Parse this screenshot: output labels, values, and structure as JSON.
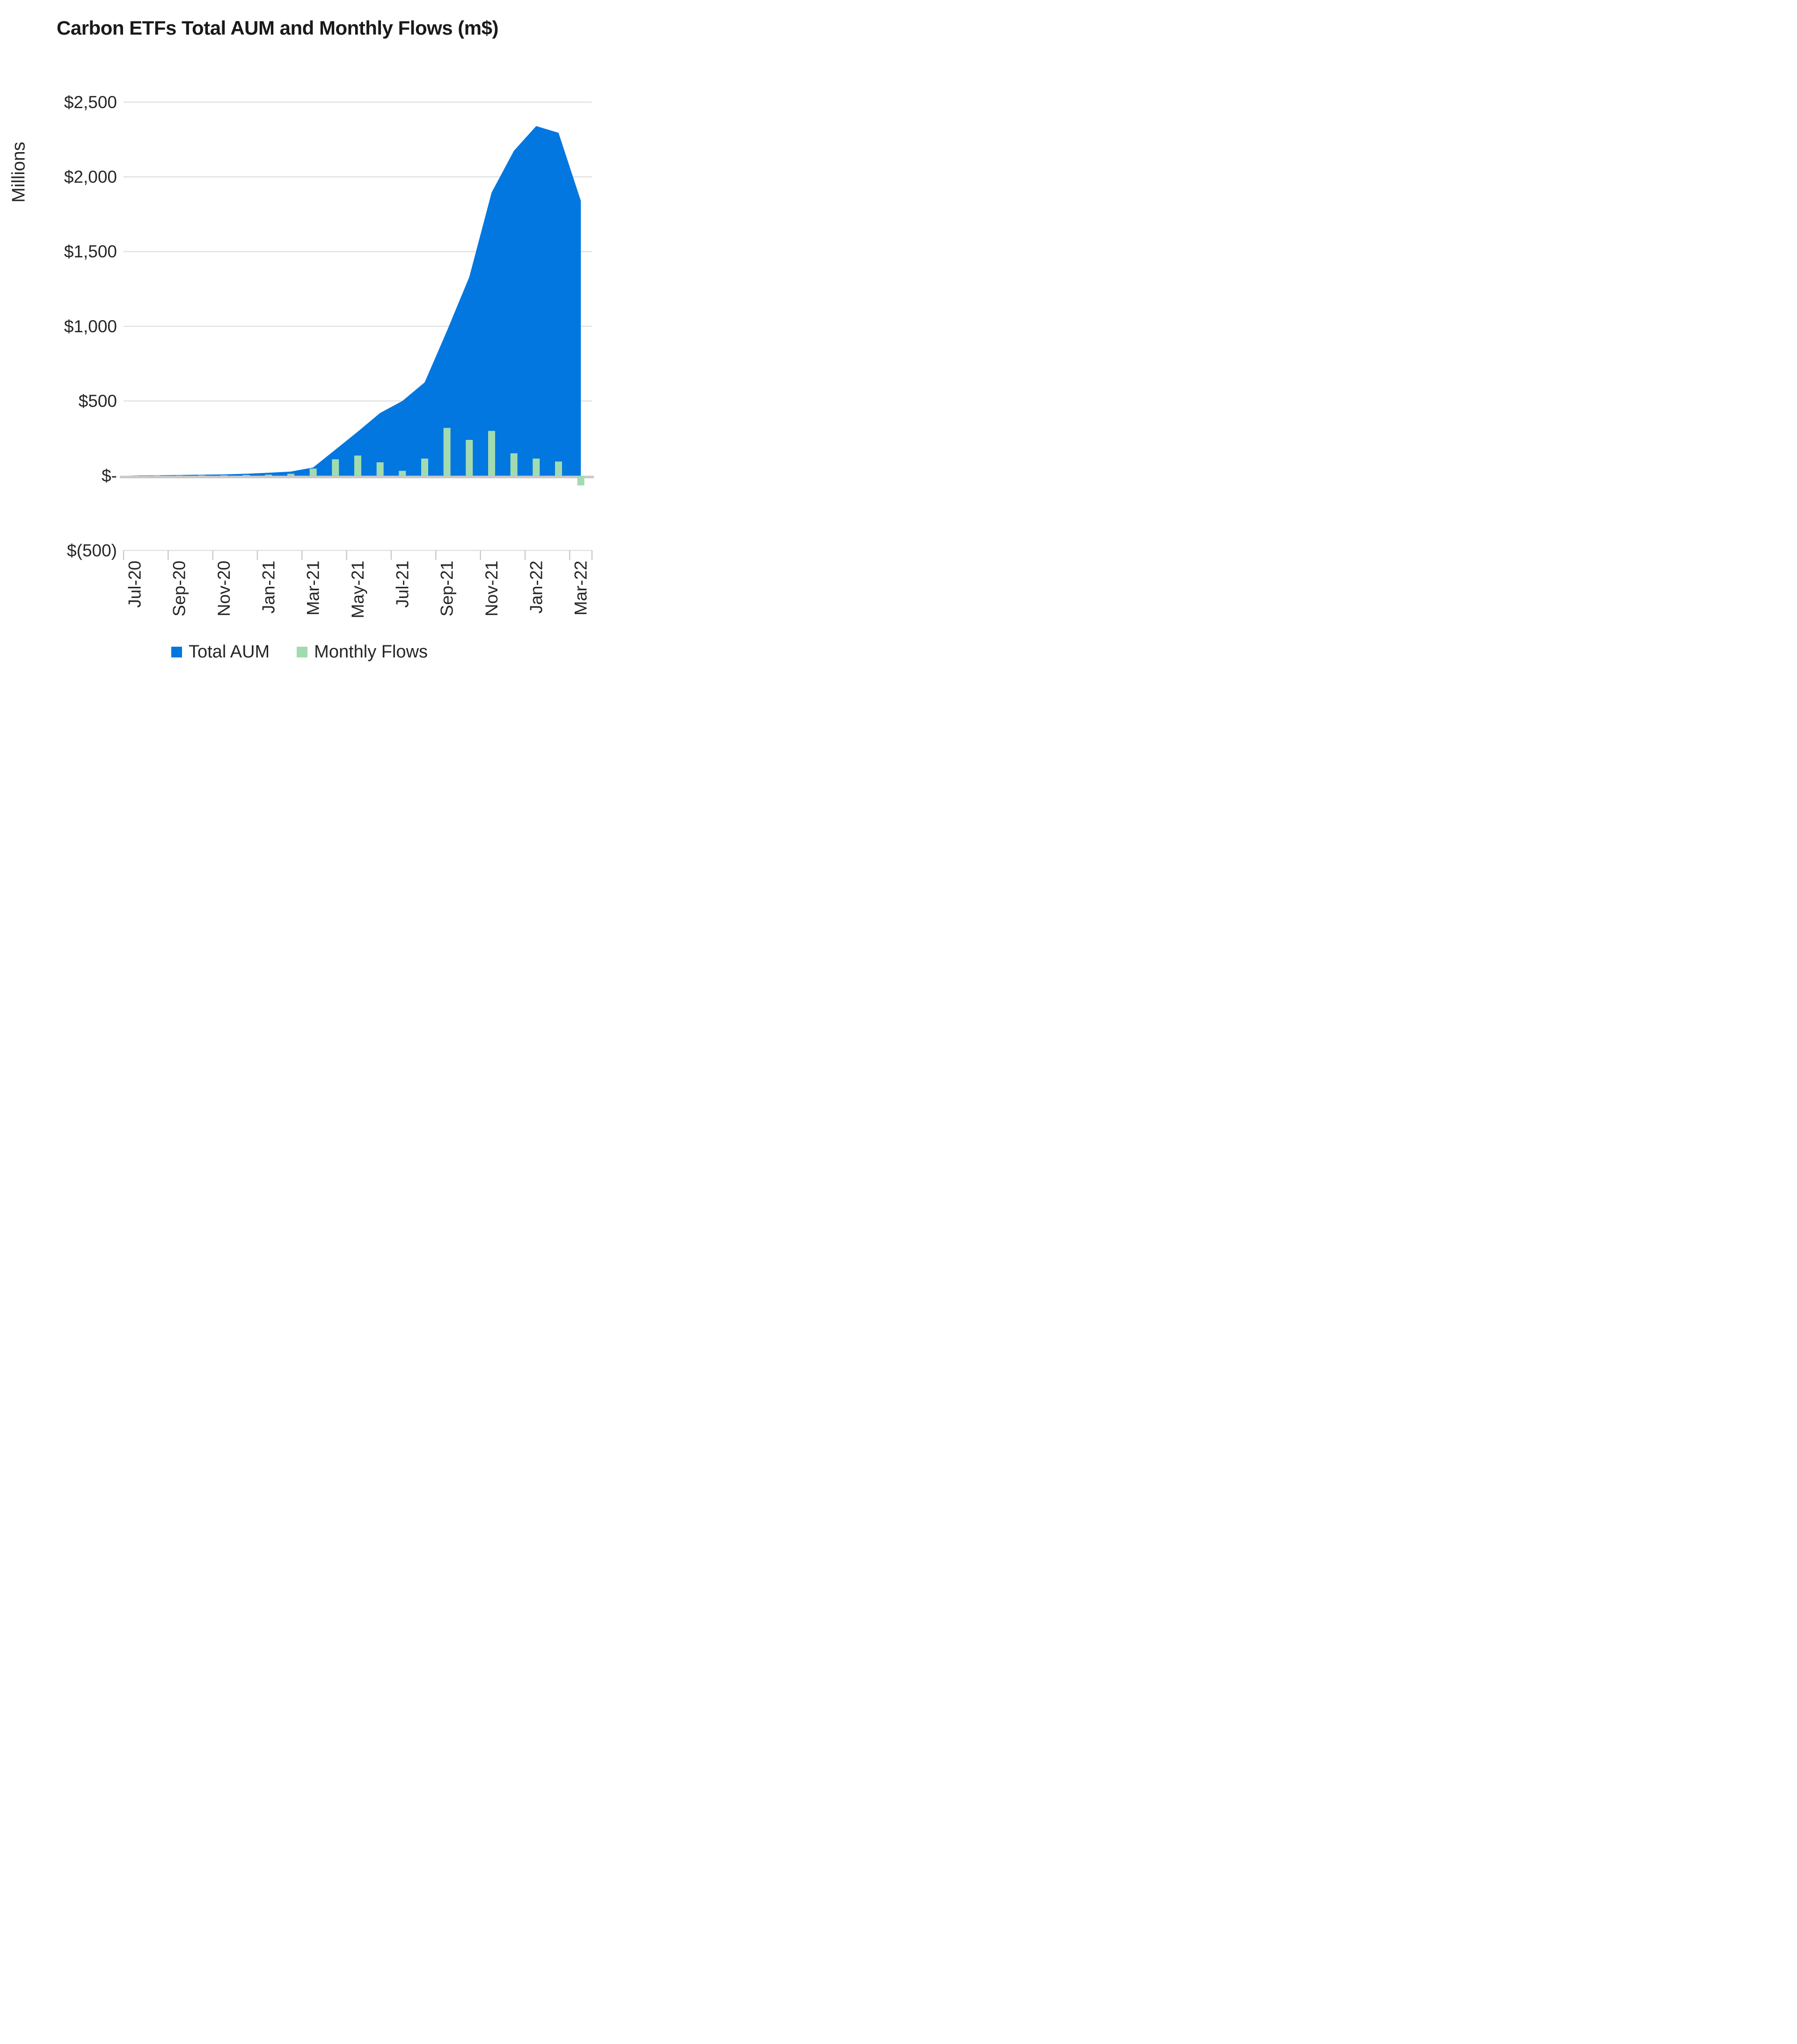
{
  "title": "Carbon ETFs Total AUM and Monthly Flows (m$)",
  "y_axis": {
    "title": "Millions",
    "tick_labels": [
      "$2,500",
      "$2,000",
      "$1,500",
      "$1,000",
      "$500",
      "$-",
      "$(500)"
    ],
    "tick_values": [
      2500,
      2000,
      1500,
      1000,
      500,
      0,
      -500
    ]
  },
  "x_axis": {
    "tick_labels": [
      "Jul-20",
      "Sep-20",
      "Nov-20",
      "Jan-21",
      "Mar-21",
      "May-21",
      "Jul-21",
      "Sep-21",
      "Nov-21",
      "Jan-22",
      "Mar-22"
    ]
  },
  "legend": {
    "items": [
      {
        "label": "Total AUM",
        "color": "#0277E0"
      },
      {
        "label": "Monthly Flows",
        "color": "#A2DBB0"
      }
    ]
  },
  "colors": {
    "area": "#0277E0",
    "bar": "#A2DBB0",
    "gridline": "#DBDBDB",
    "axis_line": "#C9C9C9",
    "tick_mark": "#C9C9C9",
    "text": "#262626"
  },
  "chart_data": {
    "type": "area",
    "title": "Carbon ETFs Total AUM and Monthly Flows (m$)",
    "xlabel": "",
    "ylabel": "Millions",
    "ylim": [
      -500,
      2500
    ],
    "y_tick_step": 500,
    "grid": true,
    "legend_position": "bottom",
    "x_tick_interval": 2,
    "categories": [
      "Jul-20",
      "Aug-20",
      "Sep-20",
      "Oct-20",
      "Nov-20",
      "Dec-20",
      "Jan-21",
      "Feb-21",
      "Mar-21",
      "Apr-21",
      "May-21",
      "Jun-21",
      "Jul-21",
      "Aug-21",
      "Sep-21",
      "Oct-21",
      "Nov-21",
      "Dec-21",
      "Jan-22",
      "Feb-22",
      "Mar-22"
    ],
    "series": [
      {
        "name": "Total AUM",
        "type": "area",
        "color": "#0277E0",
        "values": [
          2,
          3,
          5,
          7,
          9,
          13,
          20,
          28,
          55,
          175,
          295,
          420,
          500,
          625,
          970,
          1330,
          1895,
          2175,
          2340,
          2295,
          1840
        ]
      },
      {
        "name": "Monthly Flows",
        "type": "bar",
        "color": "#A2DBB0",
        "values": [
          3,
          2,
          2,
          3,
          3,
          5,
          7,
          13,
          48,
          110,
          135,
          90,
          33,
          115,
          320,
          240,
          300,
          150,
          115,
          95,
          -65
        ]
      }
    ]
  }
}
